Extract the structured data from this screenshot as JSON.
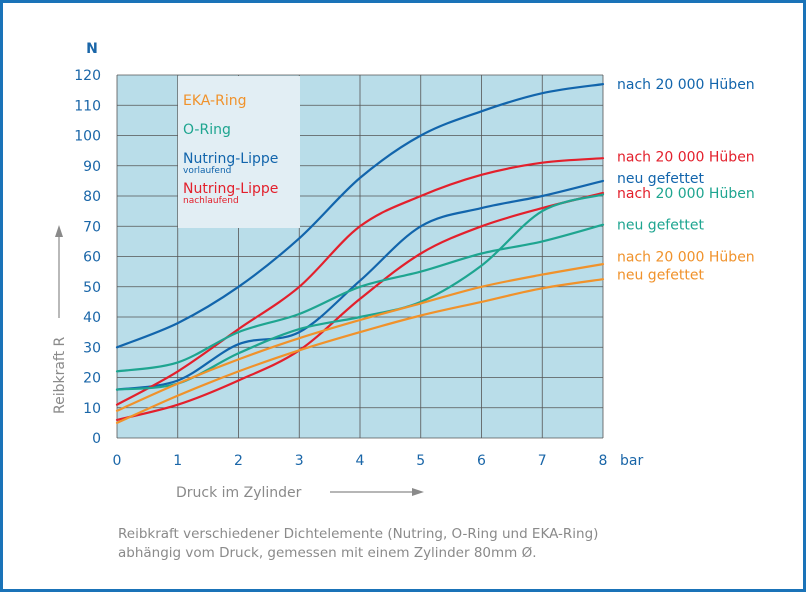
{
  "chart_data": {
    "type": "line",
    "x": [
      0,
      1,
      2,
      3,
      4,
      5,
      6,
      7,
      8
    ],
    "xlabel": "Druck im Zylinder",
    "x_unit_label": "bar",
    "ylabel": "Reibkraft R",
    "y_unit_label": "N",
    "xlim": [
      0,
      8
    ],
    "ylim": [
      0,
      120
    ],
    "x_ticks": [
      "0",
      "1",
      "2",
      "3",
      "4",
      "5",
      "6",
      "7",
      "8"
    ],
    "y_ticks": [
      "0",
      "10",
      "20",
      "30",
      "40",
      "50",
      "60",
      "70",
      "80",
      "90",
      "100",
      "110",
      "120"
    ],
    "grid": true,
    "legend_position": "top-left",
    "legend": [
      {
        "label": "EKA-Ring",
        "sub": "",
        "color": "#f0922b"
      },
      {
        "label": "O-Ring",
        "sub": "",
        "color": "#1ea590"
      },
      {
        "label": "Nutring-Lippe",
        "sub": "vorlaufend",
        "color": "#1265ac"
      },
      {
        "label": "Nutring-Lippe",
        "sub": "nachlaufend",
        "color": "#e3202c"
      }
    ],
    "series": [
      {
        "group": "Nutring-Lippe vorlaufend",
        "condition": "nach 20 000 Hüben",
        "color": "#1265ac",
        "values": [
          30,
          38,
          50,
          66,
          86,
          100,
          108,
          114,
          117
        ]
      },
      {
        "group": "Nutring-Lippe vorlaufend",
        "condition": "neu gefettet",
        "color": "#1265ac",
        "values": [
          16,
          19,
          31,
          35,
          52,
          70,
          76,
          80,
          85
        ]
      },
      {
        "group": "Nutring-Lippe nachlaufend",
        "condition": "nach 20 000 Hüben",
        "color": "#e3202c",
        "values": [
          11,
          22,
          36,
          50,
          70,
          80,
          87,
          91,
          92.5
        ]
      },
      {
        "group": "Nutring-Lippe nachlaufend",
        "condition": "neu gefettet",
        "color": "#e3202c",
        "values": [
          6,
          11,
          19,
          29,
          46,
          61,
          70,
          76,
          81
        ]
      },
      {
        "group": "O-Ring",
        "condition": "nach 20 000 Hüben",
        "color": "#1ea590",
        "values": [
          16,
          18,
          28,
          36,
          40,
          45,
          57,
          75,
          80.5
        ]
      },
      {
        "group": "O-Ring",
        "condition": "neu gefettet",
        "color": "#1ea590",
        "values": [
          22,
          25,
          35,
          41,
          50,
          55,
          61,
          65,
          70.5
        ]
      },
      {
        "group": "EKA-Ring",
        "condition": "nach 20 000 Hüben",
        "color": "#f0922b",
        "values": [
          9,
          18,
          26,
          33,
          39,
          44.5,
          50,
          54,
          57.5
        ]
      },
      {
        "group": "EKA-Ring",
        "condition": "neu gefettet",
        "color": "#f0922b",
        "values": [
          5,
          14,
          22,
          29,
          35,
          40.5,
          45,
          49.5,
          52.5
        ]
      }
    ],
    "right_annotations": [
      {
        "parts": [
          {
            "text": "nach 20 000 Hüben",
            "color": "#1265ac"
          }
        ],
        "y": 117
      },
      {
        "parts": [
          {
            "text": "nach 20 000 Hüben",
            "color": "#e3202c"
          }
        ],
        "y": 93
      },
      {
        "parts": [
          {
            "text": "neu gefettet",
            "color": "#1265ac"
          }
        ],
        "y": 86
      },
      {
        "parts": [
          {
            "text": "nach ",
            "color": "#e3202c"
          },
          {
            "text": "20 000 Hüben",
            "color": "#1ea590"
          }
        ],
        "y": 81
      },
      {
        "parts": [
          {
            "text": "neu gefettet",
            "color": "#1ea590"
          }
        ],
        "y": 70.5
      },
      {
        "parts": [
          {
            "text": "nach 20 000 Hüben",
            "color": "#f0922b"
          }
        ],
        "y": 60
      },
      {
        "parts": [
          {
            "text": "neu gefettet",
            "color": "#f0922b"
          }
        ],
        "y": 54
      }
    ]
  },
  "caption": {
    "line1": "Reibkraft verschiedener Dichtelemente (Nutring, O-Ring und EKA-Ring)",
    "line2": "abhängig vom Druck, gemessen mit einem Zylinder 80mm Ø."
  },
  "colors": {
    "frame": "#1a73b8",
    "plot_background": "#b9dde9",
    "legend_background": "#e2eef4",
    "grid": "#555555",
    "axis_text": "#1a66a8",
    "axis_label": "#8a8a8a"
  }
}
